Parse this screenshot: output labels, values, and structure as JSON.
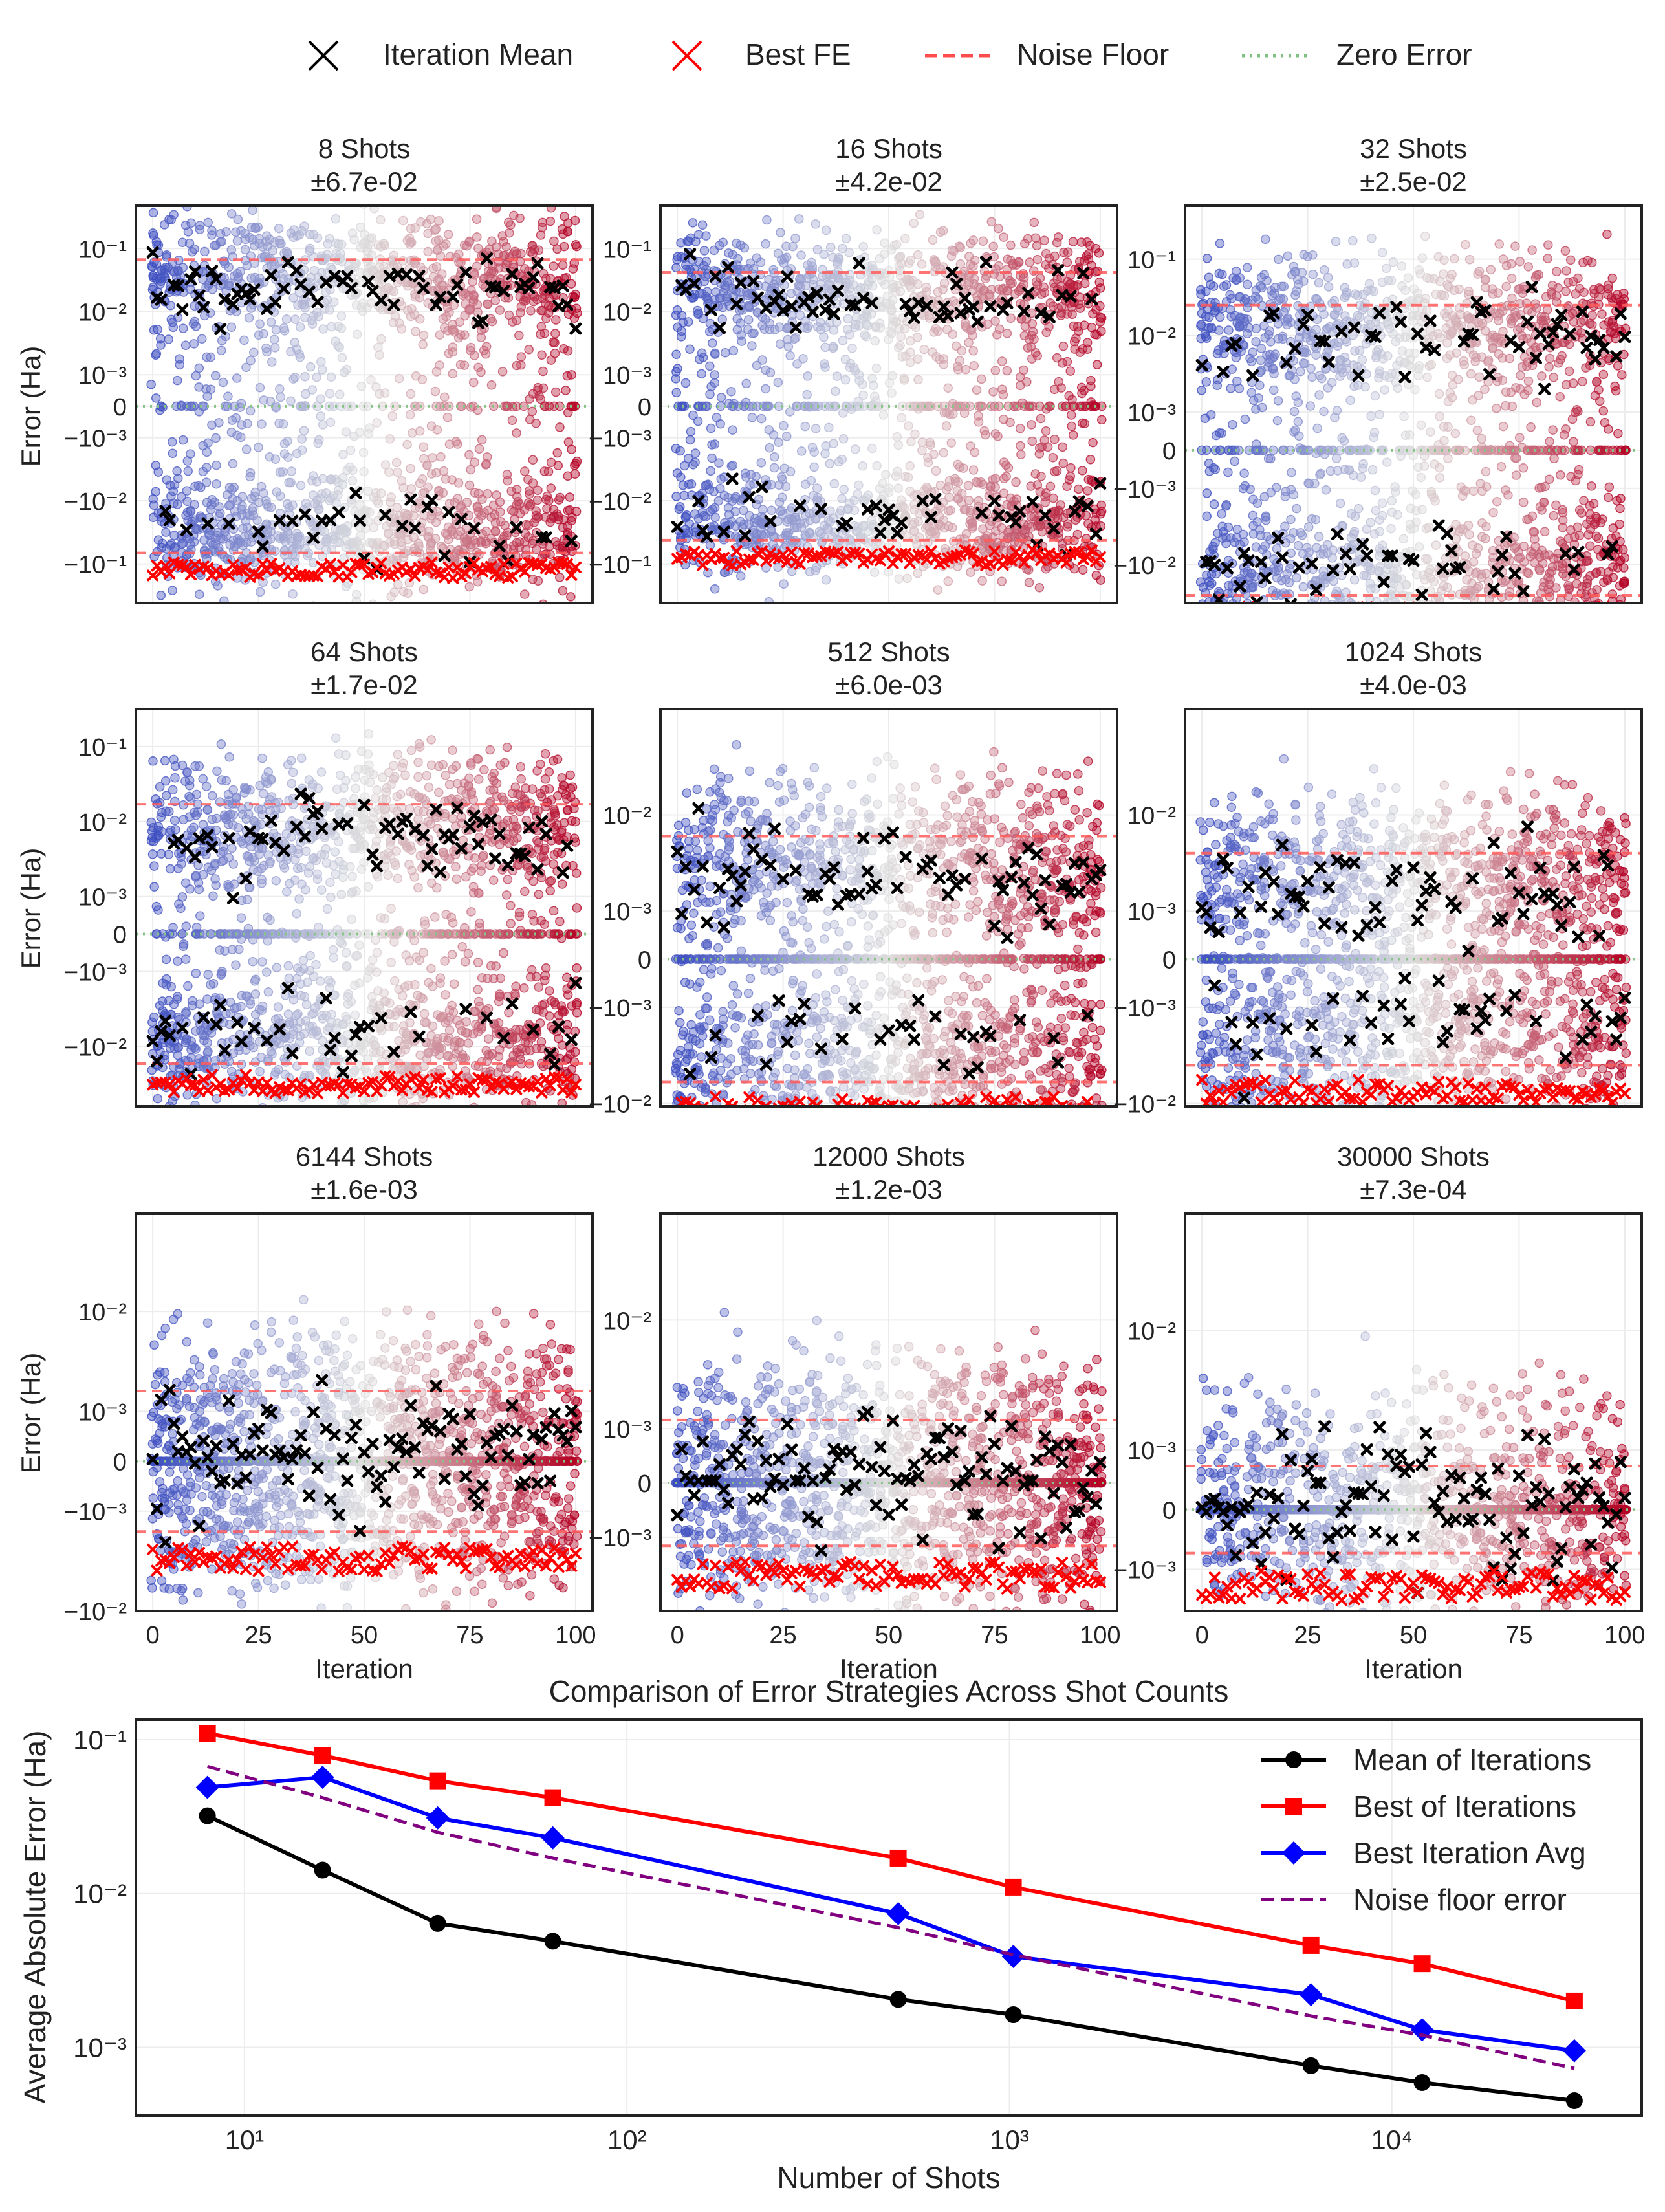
{
  "legend": {
    "items": [
      {
        "label": "Iteration Mean",
        "marker": "x-icon",
        "color": "#000000"
      },
      {
        "label": "Best FE",
        "marker": "x-icon",
        "color": "#ff0000"
      },
      {
        "label": "Noise Floor",
        "marker": "dashed-line-icon",
        "color": "#ff4d4d"
      },
      {
        "label": "Zero Error",
        "marker": "dotted-line-icon",
        "color": "#7fbf7f"
      }
    ]
  },
  "colors": {
    "mean": "#000000",
    "best_fe": "#ff0000",
    "noise_floor": "#ff5a5a",
    "zero_error": "#88c488",
    "cmap_low": "#3b4cc0",
    "cmap_mid": "#dddddd",
    "cmap_high": "#b40426",
    "line_mean": "#000000",
    "line_best": "#ff0000",
    "line_best_avg": "#0000ff",
    "line_noise": "#800080"
  },
  "chart_data": [
    {
      "type": "scatter",
      "shots": 8,
      "title": "8 Shots",
      "subtitle": "±6.7e-02",
      "noise_floor": 0.067,
      "ylabel": "Error (Ha)",
      "xlabel": "",
      "xlim": [
        -4,
        104
      ],
      "yticks": [
        "10⁻¹",
        "10⁻²",
        "10⁻³",
        "0",
        "−10⁻³",
        "−10⁻²",
        "−10⁻¹"
      ],
      "ytick_values": [
        0.1,
        0.01,
        0.001,
        0,
        -0.001,
        -0.01,
        -0.1
      ]
    },
    {
      "type": "scatter",
      "shots": 16,
      "title": "16 Shots",
      "subtitle": "±4.2e-02",
      "noise_floor": 0.042,
      "ylabel": "",
      "xlabel": "",
      "xlim": [
        -4,
        104
      ],
      "yticks": [
        "10⁻¹",
        "10⁻²",
        "10⁻³",
        "0",
        "−10⁻³",
        "−10⁻²",
        "−10⁻¹"
      ],
      "ytick_values": [
        0.1,
        0.01,
        0.001,
        0,
        -0.001,
        -0.01,
        -0.1
      ]
    },
    {
      "type": "scatter",
      "shots": 32,
      "title": "32 Shots",
      "subtitle": "±2.5e-02",
      "noise_floor": 0.025,
      "ylabel": "",
      "xlabel": "",
      "xlim": [
        -4,
        104
      ],
      "yticks": [
        "10⁻¹",
        "10⁻²",
        "10⁻³",
        "0",
        "−10⁻³",
        "−10⁻²"
      ],
      "ytick_values": [
        0.1,
        0.01,
        0.001,
        0,
        -0.001,
        -0.01
      ]
    },
    {
      "type": "scatter",
      "shots": 64,
      "title": "64 Shots",
      "subtitle": "±1.7e-02",
      "noise_floor": 0.017,
      "ylabel": "Error (Ha)",
      "xlabel": "",
      "xlim": [
        -4,
        104
      ],
      "yticks": [
        "10⁻¹",
        "10⁻²",
        "10⁻³",
        "0",
        "−10⁻³",
        "−10⁻²"
      ],
      "ytick_values": [
        0.1,
        0.01,
        0.001,
        0,
        -0.001,
        -0.01
      ]
    },
    {
      "type": "scatter",
      "shots": 512,
      "title": "512 Shots",
      "subtitle": "±6.0e-03",
      "noise_floor": 0.006,
      "ylabel": "",
      "xlabel": "",
      "xlim": [
        -4,
        104
      ],
      "yticks": [
        "10⁻²",
        "10⁻³",
        "0",
        "−10⁻³",
        "−10⁻²"
      ],
      "ytick_values": [
        0.01,
        0.001,
        0,
        -0.001,
        -0.01
      ]
    },
    {
      "type": "scatter",
      "shots": 1024,
      "title": "1024 Shots",
      "subtitle": "±4.0e-03",
      "noise_floor": 0.004,
      "ylabel": "",
      "xlabel": "",
      "xlim": [
        -4,
        104
      ],
      "yticks": [
        "10⁻²",
        "10⁻³",
        "0",
        "−10⁻³",
        "−10⁻²"
      ],
      "ytick_values": [
        0.01,
        0.001,
        0,
        -0.001,
        -0.01
      ]
    },
    {
      "type": "scatter",
      "shots": 6144,
      "title": "6144 Shots",
      "subtitle": "±1.6e-03",
      "noise_floor": 0.0016,
      "ylabel": "Error (Ha)",
      "xlabel": "Iteration",
      "xlim": [
        -4,
        104
      ],
      "yticks": [
        "10⁻²",
        "10⁻³",
        "0",
        "−10⁻³",
        "−10⁻²"
      ],
      "ytick_values": [
        0.01,
        0.001,
        0,
        -0.001,
        -0.01
      ],
      "xticks": [
        "0",
        "25",
        "50",
        "75",
        "100"
      ],
      "xtick_values": [
        0,
        25,
        50,
        75,
        100
      ]
    },
    {
      "type": "scatter",
      "shots": 12000,
      "title": "12000 Shots",
      "subtitle": "±1.2e-03",
      "noise_floor": 0.0012,
      "ylabel": "",
      "xlabel": "Iteration",
      "xlim": [
        -4,
        104
      ],
      "yticks": [
        "10⁻²",
        "10⁻³",
        "0",
        "−10⁻³"
      ],
      "ytick_values": [
        0.01,
        0.001,
        0,
        -0.001
      ],
      "xticks": [
        "0",
        "25",
        "50",
        "75",
        "100"
      ],
      "xtick_values": [
        0,
        25,
        50,
        75,
        100
      ]
    },
    {
      "type": "scatter",
      "shots": 30000,
      "title": "30000 Shots",
      "subtitle": "±7.3e-04",
      "noise_floor": 0.00073,
      "ylabel": "",
      "xlabel": "Iteration",
      "xlim": [
        -4,
        104
      ],
      "yticks": [
        "10⁻²",
        "10⁻³",
        "0",
        "−10⁻³"
      ],
      "ytick_values": [
        0.01,
        0.001,
        0,
        -0.001
      ],
      "xticks": [
        "0",
        "25",
        "50",
        "75",
        "100"
      ],
      "xtick_values": [
        0,
        25,
        50,
        75,
        100
      ]
    },
    {
      "type": "line",
      "title": "Comparison of Error Strategies Across Shot Counts",
      "xlabel": "Number of Shots",
      "ylabel": "Average Absolute Error (Ha)",
      "xscale": "log",
      "yscale": "log",
      "xlim": [
        5.2,
        45000
      ],
      "ylim": [
        0.00036,
        0.135
      ],
      "xticks": [
        "10¹",
        "10²",
        "10³",
        "10⁴"
      ],
      "xtick_values": [
        10,
        100,
        1000,
        10000
      ],
      "yticks": [
        "10⁻¹",
        "10⁻²",
        "10⁻³"
      ],
      "ytick_values": [
        0.1,
        0.01,
        0.001
      ],
      "legend_position": "top-right",
      "x": [
        8,
        16,
        32,
        64,
        512,
        1024,
        6144,
        12000,
        30000
      ],
      "series": [
        {
          "name": "Mean of Iterations",
          "marker": "circle",
          "values": [
            0.032,
            0.0142,
            0.0064,
            0.0049,
            0.00205,
            0.00163,
            0.00076,
            0.00059,
            0.00045
          ]
        },
        {
          "name": "Best of Iterations",
          "marker": "square",
          "values": [
            0.11,
            0.079,
            0.054,
            0.042,
            0.017,
            0.011,
            0.0046,
            0.0035,
            0.002
          ]
        },
        {
          "name": "Best Iteration Avg",
          "marker": "diamond",
          "values": [
            0.049,
            0.057,
            0.031,
            0.023,
            0.0074,
            0.0039,
            0.0022,
            0.0013,
            0.00095
          ]
        },
        {
          "name": "Noise floor error",
          "marker": "none",
          "dashed": true,
          "values": [
            0.067,
            0.042,
            0.025,
            0.017,
            0.006,
            0.004,
            0.0016,
            0.0012,
            0.00073
          ]
        }
      ]
    }
  ]
}
